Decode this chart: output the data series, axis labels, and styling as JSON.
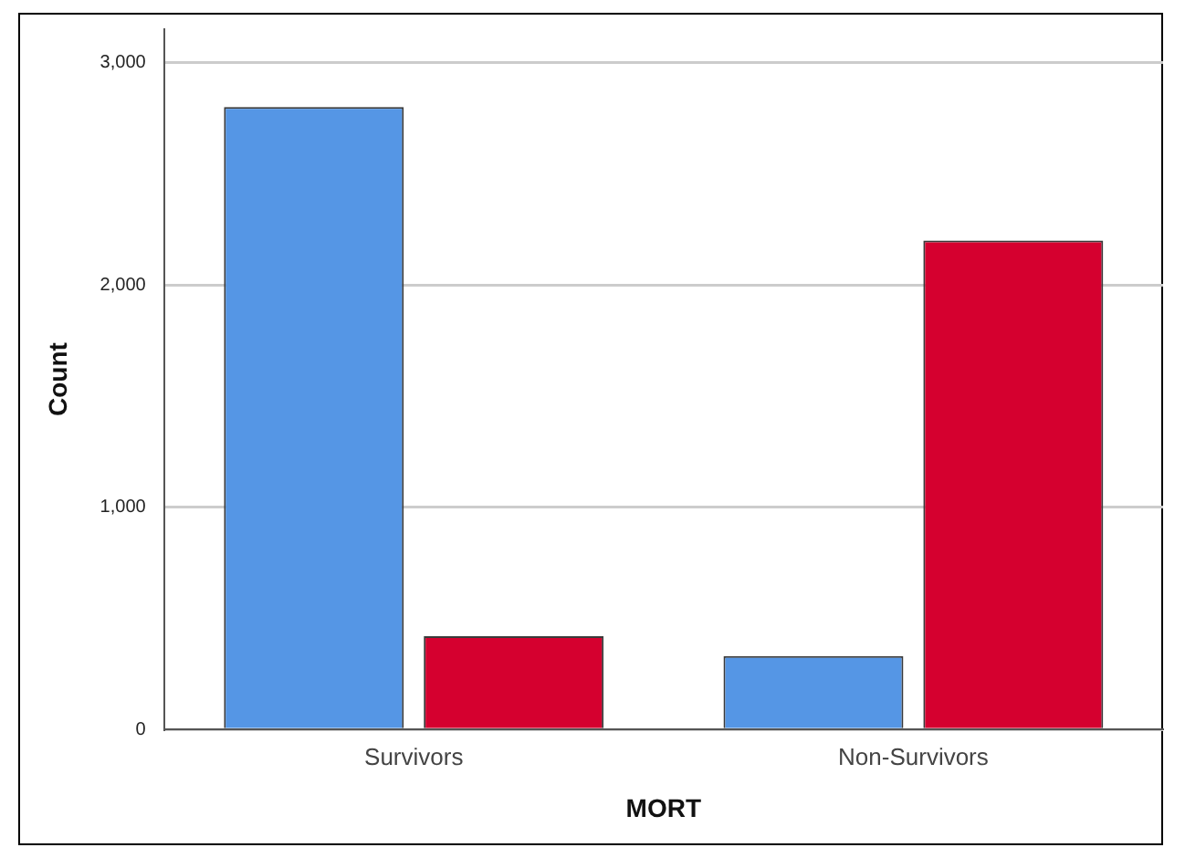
{
  "chart_data": {
    "type": "bar",
    "xlabel": "MORT",
    "ylabel": "Count",
    "categories": [
      "Survivors",
      "Non-Survivors"
    ],
    "series": [
      {
        "color": "#5596e5",
        "values": [
          2800,
          330
        ]
      },
      {
        "color": "#d5002f",
        "values": [
          420,
          2200
        ]
      }
    ],
    "ylim": [
      0,
      3150
    ],
    "yticks": [
      0,
      {
        "value": 1000,
        "label": "1,000"
      },
      {
        "value": 2000,
        "label": "2,000"
      },
      {
        "value": 3000,
        "label": "3,000"
      }
    ],
    "grid": "y",
    "legend": false
  }
}
